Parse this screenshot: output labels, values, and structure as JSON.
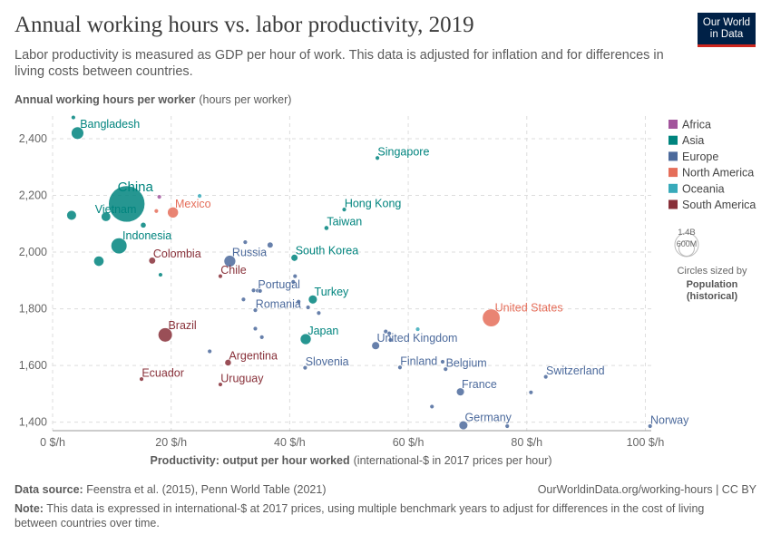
{
  "header": {
    "title": "Annual working hours vs. labor productivity, 2019",
    "subtitle": "Labor productivity is measured as GDP per hour of work. This data is adjusted for inflation and for differences in living costs between countries.",
    "logo_line1": "Our World",
    "logo_line2": "in Data"
  },
  "footer": {
    "source_label": "Data source:",
    "source_text": "Feenstra et al. (2015), Penn World Table (2021)",
    "url": "OurWorldinData.org/working-hours | CC BY",
    "note_label": "Note:",
    "note_text": "This data is expressed in international-$ at 2017 prices, using multiple benchmark years to adjust for differences in the cost of living between countries over time."
  },
  "size_legend": {
    "big": "1.4B",
    "small": "600M",
    "caption1": "Circles sized by",
    "caption2": "Population",
    "caption3": "(historical)"
  },
  "chart_data": {
    "type": "scatter",
    "title": "Annual working hours vs. labor productivity, 2019",
    "ylabel_bold": "Annual working hours per worker",
    "ylabel_unit": "(hours per worker)",
    "xlabel_bold": "Productivity: output per hour worked",
    "xlabel_unit": "(international-$ in 2017 prices per hour)",
    "xlim": [
      0,
      101
    ],
    "ylim": [
      1370,
      2480
    ],
    "xticks": [
      {
        "v": 0,
        "label": "0 $/h"
      },
      {
        "v": 20,
        "label": "20 $/h"
      },
      {
        "v": 40,
        "label": "40 $/h"
      },
      {
        "v": 60,
        "label": "60 $/h"
      },
      {
        "v": 80,
        "label": "80 $/h"
      },
      {
        "v": 100,
        "label": "100 $/h"
      }
    ],
    "yticks": [
      {
        "v": 1400,
        "label": "1,400"
      },
      {
        "v": 1600,
        "label": "1,600"
      },
      {
        "v": 1800,
        "label": "1,800"
      },
      {
        "v": 2000,
        "label": "2,000"
      },
      {
        "v": 2200,
        "label": "2,200"
      },
      {
        "v": 2400,
        "label": "2,400"
      }
    ],
    "legend": [
      {
        "name": "Africa",
        "color": "#a2559c"
      },
      {
        "name": "Asia",
        "color": "#00847e"
      },
      {
        "name": "Europe",
        "color": "#4c6a9c"
      },
      {
        "name": "North America",
        "color": "#e56e5a"
      },
      {
        "name": "Oceania",
        "color": "#38aaba"
      },
      {
        "name": "South America",
        "color": "#883039"
      }
    ],
    "points": [
      {
        "label": "Bangladesh",
        "region": "Asia",
        "x": 4.2,
        "y": 2420,
        "pop": 165
      },
      {
        "label": "China",
        "region": "Asia",
        "x": 12.5,
        "y": 2170,
        "pop": 1400
      },
      {
        "label": "Vietnam",
        "region": "Asia",
        "x": 9,
        "y": 2125,
        "pop": 96
      },
      {
        "label": "Indonesia",
        "region": "Asia",
        "x": 11.2,
        "y": 2022,
        "pop": 270
      },
      {
        "label": "Singapore",
        "region": "Asia",
        "x": 54.8,
        "y": 2332,
        "pop": 6
      },
      {
        "label": "Hong Kong",
        "region": "Asia",
        "x": 49.2,
        "y": 2150,
        "pop": 7
      },
      {
        "label": "Taiwan",
        "region": "Asia",
        "x": 46.2,
        "y": 2085,
        "pop": 24
      },
      {
        "label": "South Korea",
        "region": "Asia",
        "x": 40.8,
        "y": 1980,
        "pop": 51
      },
      {
        "label": "Turkey",
        "region": "Asia",
        "x": 43.9,
        "y": 1833,
        "pop": 83
      },
      {
        "label": "Japan",
        "region": "Asia",
        "x": 42.7,
        "y": 1693,
        "pop": 126
      },
      {
        "label": "",
        "region": "Asia",
        "x": 3.2,
        "y": 2130,
        "pop": 100
      },
      {
        "label": "",
        "region": "Asia",
        "x": 7.8,
        "y": 1968,
        "pop": 110
      },
      {
        "label": "",
        "region": "Asia",
        "x": 15.3,
        "y": 2095,
        "pop": 34
      },
      {
        "label": "",
        "region": "Asia",
        "x": 18.2,
        "y": 1920,
        "pop": 4
      },
      {
        "label": "",
        "region": "Asia",
        "x": 3.5,
        "y": 2475,
        "pop": 3
      },
      {
        "label": "Mexico",
        "region": "North America",
        "x": 20.3,
        "y": 2140,
        "pop": 127
      },
      {
        "label": "United States",
        "region": "North America",
        "x": 74,
        "y": 1768,
        "pop": 330
      },
      {
        "label": "",
        "region": "North America",
        "x": 17.5,
        "y": 2145,
        "pop": 3
      },
      {
        "label": "Colombia",
        "region": "South America",
        "x": 16.8,
        "y": 1970,
        "pop": 50
      },
      {
        "label": "Chile",
        "region": "South America",
        "x": 28.3,
        "y": 1915,
        "pop": 19
      },
      {
        "label": "Brazil",
        "region": "South America",
        "x": 19,
        "y": 1708,
        "pop": 212
      },
      {
        "label": "Argentina",
        "region": "South America",
        "x": 29.6,
        "y": 1610,
        "pop": 45
      },
      {
        "label": "Ecuador",
        "region": "South America",
        "x": 15,
        "y": 1552,
        "pop": 17
      },
      {
        "label": "Uruguay",
        "region": "South America",
        "x": 28.3,
        "y": 1533,
        "pop": 3
      },
      {
        "label": "",
        "region": "Africa",
        "x": 18,
        "y": 2195,
        "pop": 19
      },
      {
        "label": "",
        "region": "Oceania",
        "x": 24.8,
        "y": 2198,
        "pop": 5
      },
      {
        "label": "",
        "region": "Oceania",
        "x": 61.6,
        "y": 1728,
        "pop": 4
      },
      {
        "label": "Russia",
        "region": "Europe",
        "x": 29.9,
        "y": 1968,
        "pop": 145
      },
      {
        "label": "Portugal",
        "region": "Europe",
        "x": 34.6,
        "y": 1864,
        "pop": 10
      },
      {
        "label": "Romania",
        "region": "Europe",
        "x": 34.2,
        "y": 1795,
        "pop": 19
      },
      {
        "label": "United Kingdom",
        "region": "Europe",
        "x": 54.5,
        "y": 1670,
        "pop": 67
      },
      {
        "label": "Slovenia",
        "region": "Europe",
        "x": 42.6,
        "y": 1592,
        "pop": 2
      },
      {
        "label": "Finland",
        "region": "Europe",
        "x": 58.6,
        "y": 1593,
        "pop": 5
      },
      {
        "label": "Belgium",
        "region": "Europe",
        "x": 66.3,
        "y": 1587,
        "pop": 11
      },
      {
        "label": "Switzerland",
        "region": "Europe",
        "x": 83.2,
        "y": 1560,
        "pop": 9
      },
      {
        "label": "France",
        "region": "Europe",
        "x": 68.8,
        "y": 1507,
        "pop": 67
      },
      {
        "label": "Germany",
        "region": "Europe",
        "x": 69.3,
        "y": 1389,
        "pop": 83
      },
      {
        "label": "Norway",
        "region": "Europe",
        "x": 100.8,
        "y": 1386,
        "pop": 5
      },
      {
        "label": "",
        "region": "Europe",
        "x": 36.7,
        "y": 2025,
        "pop": 38
      },
      {
        "label": "",
        "region": "Europe",
        "x": 32.5,
        "y": 2035,
        "pop": 9
      },
      {
        "label": "",
        "region": "Europe",
        "x": 33.9,
        "y": 1865,
        "pop": 4
      },
      {
        "label": "",
        "region": "Europe",
        "x": 32.2,
        "y": 1833,
        "pop": 3
      },
      {
        "label": "",
        "region": "Europe",
        "x": 35,
        "y": 1863,
        "pop": 7
      },
      {
        "label": "",
        "region": "Europe",
        "x": 40.9,
        "y": 1915,
        "pop": 4
      },
      {
        "label": "",
        "region": "Europe",
        "x": 40.6,
        "y": 1895,
        "pop": 2
      },
      {
        "label": "",
        "region": "Europe",
        "x": 41.5,
        "y": 1825,
        "pop": 6
      },
      {
        "label": "",
        "region": "Europe",
        "x": 43.1,
        "y": 1805,
        "pop": 3
      },
      {
        "label": "",
        "region": "Europe",
        "x": 44.9,
        "y": 1785,
        "pop": 2
      },
      {
        "label": "",
        "region": "Europe",
        "x": 34.2,
        "y": 1730,
        "pop": 6
      },
      {
        "label": "",
        "region": "Europe",
        "x": 35.3,
        "y": 1700,
        "pop": 7
      },
      {
        "label": "",
        "region": "Europe",
        "x": 26.5,
        "y": 1650,
        "pop": 10
      },
      {
        "label": "",
        "region": "Europe",
        "x": 56.2,
        "y": 1720,
        "pop": 17
      },
      {
        "label": "",
        "region": "Europe",
        "x": 56.8,
        "y": 1713,
        "pop": 9
      },
      {
        "label": "",
        "region": "Europe",
        "x": 57,
        "y": 1690,
        "pop": 5
      },
      {
        "label": "",
        "region": "Europe",
        "x": 65.8,
        "y": 1613,
        "pop": 6
      },
      {
        "label": "",
        "region": "Europe",
        "x": 80.7,
        "y": 1505,
        "pop": 5
      },
      {
        "label": "",
        "region": "Europe",
        "x": 64,
        "y": 1455,
        "pop": 5
      },
      {
        "label": "",
        "region": "Europe",
        "x": 76.7,
        "y": 1386,
        "pop": 17
      }
    ]
  }
}
